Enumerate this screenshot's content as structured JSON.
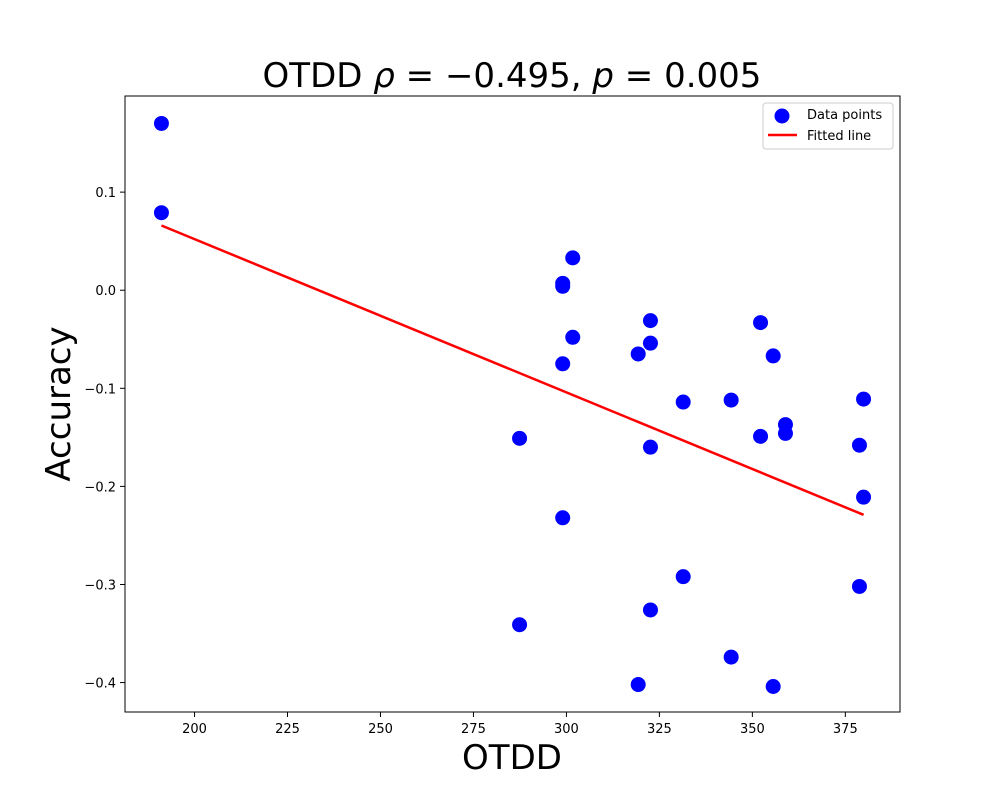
{
  "chart_data": {
    "type": "scatter",
    "title": "OTDD ρ = −0.495, p = 0.005",
    "title_parts": {
      "prefix": "OTDD ",
      "rho_symbol": "ρ",
      "rho_value": " = −0.495, ",
      "p_symbol": "p",
      "p_value": " = 0.005"
    },
    "xlabel": "OTDD",
    "ylabel": "Accuracy",
    "xlim": [
      181.3,
      389.7
    ],
    "ylim": [
      -0.43,
      0.198
    ],
    "xticks": [
      200,
      225,
      250,
      275,
      300,
      325,
      350,
      375
    ],
    "yticks": [
      -0.4,
      -0.3,
      -0.2,
      -0.1,
      0.0,
      0.1
    ],
    "ytick_labels": [
      "−0.4",
      "−0.3",
      "−0.2",
      "−0.1",
      "0.0",
      "0.1"
    ],
    "grid": false,
    "legend_position": "top-right",
    "series": [
      {
        "name": "Data points",
        "kind": "scatter",
        "color": "#0000ff",
        "points": [
          {
            "x": 191.1,
            "y": 0.17
          },
          {
            "x": 191.1,
            "y": 0.079
          },
          {
            "x": 287.4,
            "y": -0.151
          },
          {
            "x": 287.4,
            "y": -0.341
          },
          {
            "x": 299.0,
            "y": 0.007
          },
          {
            "x": 299.0,
            "y": 0.004
          },
          {
            "x": 299.0,
            "y": -0.075
          },
          {
            "x": 299.0,
            "y": -0.232
          },
          {
            "x": 301.7,
            "y": 0.033
          },
          {
            "x": 301.7,
            "y": -0.048
          },
          {
            "x": 319.3,
            "y": -0.065
          },
          {
            "x": 319.3,
            "y": -0.402
          },
          {
            "x": 322.6,
            "y": -0.031
          },
          {
            "x": 322.6,
            "y": -0.054
          },
          {
            "x": 322.6,
            "y": -0.16
          },
          {
            "x": 322.6,
            "y": -0.326
          },
          {
            "x": 331.4,
            "y": -0.114
          },
          {
            "x": 331.4,
            "y": -0.292
          },
          {
            "x": 344.3,
            "y": -0.112
          },
          {
            "x": 344.3,
            "y": -0.374
          },
          {
            "x": 352.2,
            "y": -0.033
          },
          {
            "x": 352.2,
            "y": -0.149
          },
          {
            "x": 355.6,
            "y": -0.067
          },
          {
            "x": 355.6,
            "y": -0.404
          },
          {
            "x": 358.9,
            "y": -0.137
          },
          {
            "x": 358.9,
            "y": -0.146
          },
          {
            "x": 378.8,
            "y": -0.158
          },
          {
            "x": 378.8,
            "y": -0.302
          },
          {
            "x": 379.9,
            "y": -0.111
          },
          {
            "x": 379.9,
            "y": -0.211
          }
        ]
      },
      {
        "name": "Fitted line",
        "kind": "line",
        "color": "#ff0000",
        "points": [
          {
            "x": 191.1,
            "y": 0.066
          },
          {
            "x": 379.9,
            "y": -0.229
          }
        ]
      }
    ]
  }
}
